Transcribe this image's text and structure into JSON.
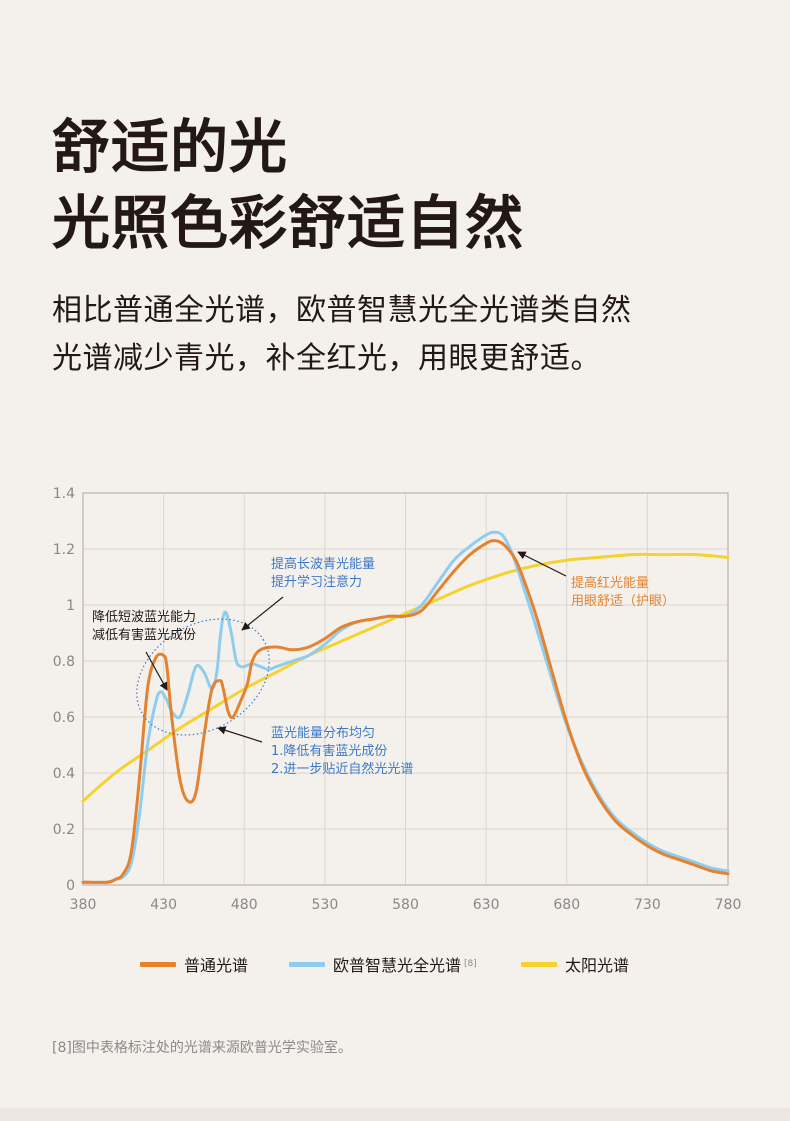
{
  "header": {
    "title_line1": "舒适的光",
    "title_line2": "光照色彩舒适自然",
    "subtitle_line1": "相比普通全光谱，欧普智慧光全光谱类自然",
    "subtitle_line2": "光谱减少青光，补全红光，用眼更舒适。"
  },
  "chart_data": {
    "type": "line",
    "xlim": [
      380,
      780
    ],
    "ylim": [
      0,
      1.4
    ],
    "x_ticks": [
      "380",
      "430",
      "480",
      "530",
      "580",
      "630",
      "680",
      "730",
      "780"
    ],
    "y_ticks": [
      "0",
      "0.2",
      "0.4",
      "0.6",
      "0.8",
      "1",
      "1.2",
      "1.4"
    ],
    "grid": true,
    "series": [
      {
        "name": "普通光谱",
        "color": "#e4822f",
        "x": [
          380,
          395,
          400,
          405,
          410,
          415,
          420,
          425,
          430,
          432,
          435,
          440,
          445,
          450,
          455,
          460,
          465,
          467,
          470,
          473,
          478,
          482,
          485,
          490,
          500,
          510,
          520,
          530,
          540,
          550,
          560,
          570,
          580,
          590,
          600,
          610,
          620,
          630,
          635,
          640,
          645,
          650,
          660,
          670,
          680,
          690,
          700,
          710,
          720,
          730,
          740,
          750,
          760,
          770,
          780
        ],
        "y": [
          0.01,
          0.01,
          0.02,
          0.04,
          0.12,
          0.38,
          0.7,
          0.81,
          0.82,
          0.78,
          0.6,
          0.38,
          0.3,
          0.33,
          0.53,
          0.7,
          0.73,
          0.7,
          0.62,
          0.6,
          0.66,
          0.72,
          0.8,
          0.84,
          0.85,
          0.84,
          0.85,
          0.88,
          0.92,
          0.94,
          0.95,
          0.96,
          0.96,
          0.98,
          1.05,
          1.12,
          1.18,
          1.22,
          1.23,
          1.22,
          1.19,
          1.14,
          0.98,
          0.78,
          0.58,
          0.42,
          0.31,
          0.23,
          0.18,
          0.14,
          0.11,
          0.09,
          0.07,
          0.05,
          0.04
        ]
      },
      {
        "name": "欧普智慧光全光谱",
        "color": "#8fcdf0",
        "x": [
          380,
          395,
          400,
          405,
          410,
          415,
          420,
          425,
          428,
          432,
          435,
          440,
          445,
          450,
          455,
          460,
          463,
          465,
          467,
          469,
          472,
          475,
          478,
          480,
          485,
          490,
          495,
          500,
          510,
          520,
          530,
          540,
          550,
          560,
          570,
          580,
          590,
          600,
          610,
          620,
          630,
          635,
          640,
          645,
          650,
          660,
          670,
          680,
          690,
          700,
          710,
          720,
          730,
          740,
          750,
          760,
          770,
          780
        ],
        "y": [
          0.01,
          0.01,
          0.02,
          0.03,
          0.08,
          0.25,
          0.5,
          0.65,
          0.69,
          0.66,
          0.62,
          0.6,
          0.68,
          0.78,
          0.76,
          0.7,
          0.76,
          0.88,
          0.96,
          0.97,
          0.9,
          0.8,
          0.78,
          0.78,
          0.79,
          0.78,
          0.77,
          0.78,
          0.8,
          0.82,
          0.86,
          0.91,
          0.94,
          0.95,
          0.96,
          0.96,
          1.0,
          1.08,
          1.16,
          1.21,
          1.25,
          1.26,
          1.25,
          1.2,
          1.12,
          0.94,
          0.75,
          0.57,
          0.43,
          0.32,
          0.24,
          0.19,
          0.15,
          0.12,
          0.1,
          0.08,
          0.06,
          0.05
        ]
      },
      {
        "name": "太阳光谱",
        "color": "#f5d22e",
        "x": [
          380,
          400,
          420,
          440,
          460,
          480,
          500,
          520,
          540,
          560,
          580,
          600,
          620,
          640,
          660,
          680,
          700,
          720,
          740,
          760,
          780
        ],
        "y": [
          0.3,
          0.4,
          0.48,
          0.56,
          0.63,
          0.7,
          0.76,
          0.82,
          0.87,
          0.92,
          0.97,
          1.02,
          1.07,
          1.11,
          1.14,
          1.16,
          1.17,
          1.18,
          1.18,
          1.18,
          1.17
        ]
      }
    ],
    "annotations": {
      "blue_wave_line1": "提高长波青光能量",
      "blue_wave_line2": "提升学习注意力",
      "short_wave_line1": "降低短波蓝光能力",
      "short_wave_line2": "减低有害蓝光成份",
      "uniform_line1": "蓝光能量分布均匀",
      "uniform_line2": "1.降低有害蓝光成份",
      "uniform_line3": "2.进一步贴近自然光光谱",
      "red_line1": "提高红光能量",
      "red_line2": "用眼舒适（护眼）"
    }
  },
  "legend": {
    "items": [
      {
        "label": "普通光谱",
        "color": "#e4822f"
      },
      {
        "label": "欧普智慧光全光谱",
        "color": "#8fcdf0",
        "ref": "[8]"
      },
      {
        "label": "太阳光谱",
        "color": "#f5d22e"
      }
    ]
  },
  "footnote": "[8]图中表格标注处的光谱来源欧普光学实验室。"
}
